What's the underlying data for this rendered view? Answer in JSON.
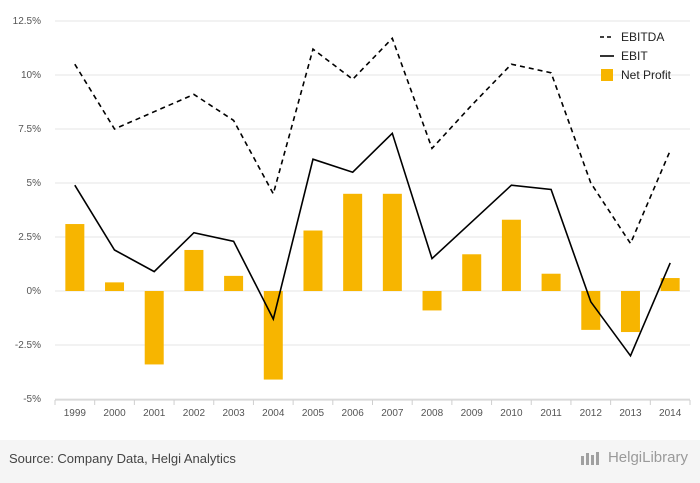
{
  "chart_data": {
    "type": "bar+line",
    "categories": [
      "1999",
      "2000",
      "2001",
      "2002",
      "2003",
      "2004",
      "2005",
      "2006",
      "2007",
      "2008",
      "2009",
      "2010",
      "2011",
      "2012",
      "2013",
      "2014"
    ],
    "series": [
      {
        "name": "EBITDA",
        "kind": "line",
        "style": "dashed",
        "color": "#000000",
        "values": [
          10.5,
          7.5,
          8.3,
          9.1,
          7.9,
          4.5,
          11.2,
          9.8,
          11.7,
          6.6,
          8.6,
          10.5,
          10.1,
          5.0,
          2.2,
          6.5
        ]
      },
      {
        "name": "EBIT",
        "kind": "line",
        "style": "solid",
        "color": "#000000",
        "values": [
          4.9,
          1.9,
          0.9,
          2.7,
          2.3,
          -1.3,
          6.1,
          5.5,
          7.3,
          1.5,
          3.2,
          4.9,
          4.7,
          -0.5,
          -3.0,
          1.3
        ]
      },
      {
        "name": "Net Profit",
        "kind": "bar",
        "color": "#f7b500",
        "values": [
          3.1,
          0.4,
          -3.4,
          1.9,
          0.7,
          -4.1,
          2.8,
          4.5,
          4.5,
          -0.9,
          1.7,
          3.3,
          0.8,
          -1.8,
          -1.9,
          0.6
        ]
      }
    ],
    "yticks": [
      "-5%",
      "-2.5%",
      "0%",
      "2.5%",
      "5%",
      "7.5%",
      "10%",
      "12.5%"
    ],
    "ylim": [
      -5,
      12.5
    ],
    "grid": true,
    "legend_position": "top-right"
  },
  "footer": {
    "source": "Source: Company Data, Helgi Analytics",
    "brand": "HelgiLibrary"
  }
}
